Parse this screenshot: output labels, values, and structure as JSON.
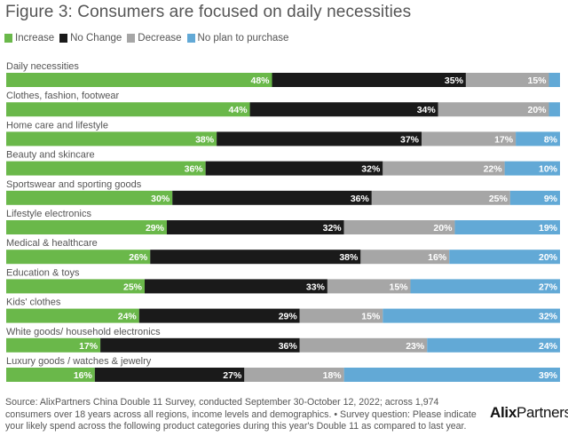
{
  "chart_data": {
    "type": "bar",
    "orientation": "horizontal",
    "stacked": true,
    "normalized_to": 100,
    "unit": "%",
    "title": "Figure 3: Consumers are focused on daily necessities",
    "xlabel": "",
    "ylabel": "",
    "xlim": [
      0,
      100
    ],
    "grid": false,
    "legend_position": "top-left",
    "categories": [
      "Daily necessities",
      "Clothes, fashion, footwear",
      "Home care and lifestyle",
      "Beauty and skincare",
      "Sportswear and sporting goods",
      "Lifestyle electronics",
      "Medical & healthcare",
      "Education & toys",
      "Kids' clothes",
      "White goods/ household electronics",
      "Luxury goods / watches & jewelry"
    ],
    "series": [
      {
        "name": "Increase",
        "color": "#6ab84a",
        "values": [
          48,
          44,
          38,
          36,
          30,
          29,
          26,
          25,
          24,
          17,
          16
        ],
        "labels": [
          "48%",
          "44%",
          "38%",
          "36%",
          "30%",
          "29%",
          "26%",
          "25%",
          "24%",
          "17%",
          "16%"
        ]
      },
      {
        "name": "No Change",
        "color": "#1a1a1a",
        "values": [
          35,
          34,
          37,
          32,
          36,
          32,
          38,
          33,
          29,
          36,
          27
        ],
        "labels": [
          "35%",
          "34%",
          "37%",
          "32%",
          "36%",
          "32%",
          "38%",
          "33%",
          "29%",
          "36%",
          "27%"
        ]
      },
      {
        "name": "Decrease",
        "color": "#a6a6a6",
        "values": [
          15,
          20,
          17,
          22,
          25,
          20,
          16,
          15,
          15,
          23,
          18
        ],
        "labels": [
          "15%",
          "20%",
          "17%",
          "22%",
          "25%",
          "20%",
          "16%",
          "15%",
          "15%",
          "23%",
          "18%"
        ]
      },
      {
        "name": "No plan to purchase",
        "color": "#62a9d6",
        "values": [
          2,
          2,
          8,
          10,
          9,
          19,
          20,
          27,
          32,
          24,
          39
        ],
        "labels": [
          "",
          "",
          "8%",
          "10%",
          "9%",
          "19%",
          "20%",
          "27%",
          "32%",
          "24%",
          "39%"
        ]
      }
    ]
  },
  "title": "Figure 3: Consumers are focused on daily necessities",
  "legend": [
    {
      "label": "Increase",
      "color": "#6ab84a"
    },
    {
      "label": "No Change",
      "color": "#1a1a1a"
    },
    {
      "label": "Decrease",
      "color": "#a6a6a6"
    },
    {
      "label": "No plan to purchase",
      "color": "#62a9d6"
    }
  ],
  "footer": {
    "source": "Source: AlixPartners China Double 11 Survey, conducted September 30-October 12, 2022; across 1,974 consumers over 18 years across all regions, income levels and demographics. • Survey question: Please indicate your likely spend across the following product categories during this year's Double 11 as compared to last year.",
    "logo_bold": "Alix",
    "logo_regular": "Partners"
  }
}
